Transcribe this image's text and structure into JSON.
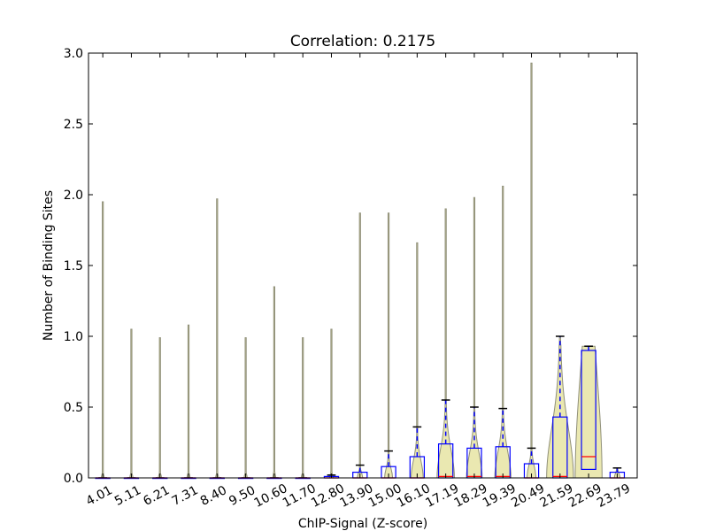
{
  "chart_data": {
    "type": "violin",
    "title": "Correlation: 0.2175",
    "xlabel": "ChIP-Signal (Z-score)",
    "ylabel": "Number of Binding Sites",
    "ylim": [
      0,
      3.0
    ],
    "yticks": [
      "0.0",
      "0.5",
      "1.0",
      "1.5",
      "2.0",
      "2.5",
      "3.0"
    ],
    "categories": [
      "4.01",
      "5.11",
      "6.21",
      "7.31",
      "8.40",
      "9.50",
      "10.60",
      "11.70",
      "12.80",
      "13.90",
      "15.00",
      "16.10",
      "17.19",
      "18.29",
      "19.39",
      "20.49",
      "21.59",
      "22.69",
      "23.79"
    ],
    "violin_max": [
      1.95,
      1.05,
      0.99,
      1.08,
      1.97,
      0.99,
      1.35,
      0.99,
      1.05,
      1.87,
      1.87,
      1.66,
      1.9,
      1.98,
      2.06,
      2.93,
      1.0,
      0.93,
      0.07
    ],
    "box_q1": [
      0,
      0,
      0,
      0,
      0,
      0,
      0,
      0,
      0,
      0,
      0,
      0,
      0,
      0,
      0,
      0,
      0,
      0.06,
      0
    ],
    "box_median": [
      0,
      0,
      0,
      0,
      0,
      0,
      0,
      0,
      0,
      0,
      0,
      0,
      0.01,
      0.01,
      0.01,
      0,
      0.01,
      0.15,
      0
    ],
    "box_q3": [
      0,
      0,
      0,
      0,
      0,
      0,
      0,
      0,
      0.01,
      0.04,
      0.08,
      0.15,
      0.24,
      0.21,
      0.22,
      0.1,
      0.43,
      0.9,
      0.04
    ],
    "whisker_high": [
      0,
      0,
      0,
      0,
      0,
      0,
      0,
      0,
      0.02,
      0.09,
      0.19,
      0.36,
      0.55,
      0.5,
      0.49,
      0.21,
      1.0,
      0.93,
      0.07
    ],
    "colors": {
      "violin_fill": "#e8e6a8",
      "violin_edge": "#8f8f78",
      "box": "#0000ff",
      "median": "#ff0000",
      "cap": "#000000"
    }
  }
}
